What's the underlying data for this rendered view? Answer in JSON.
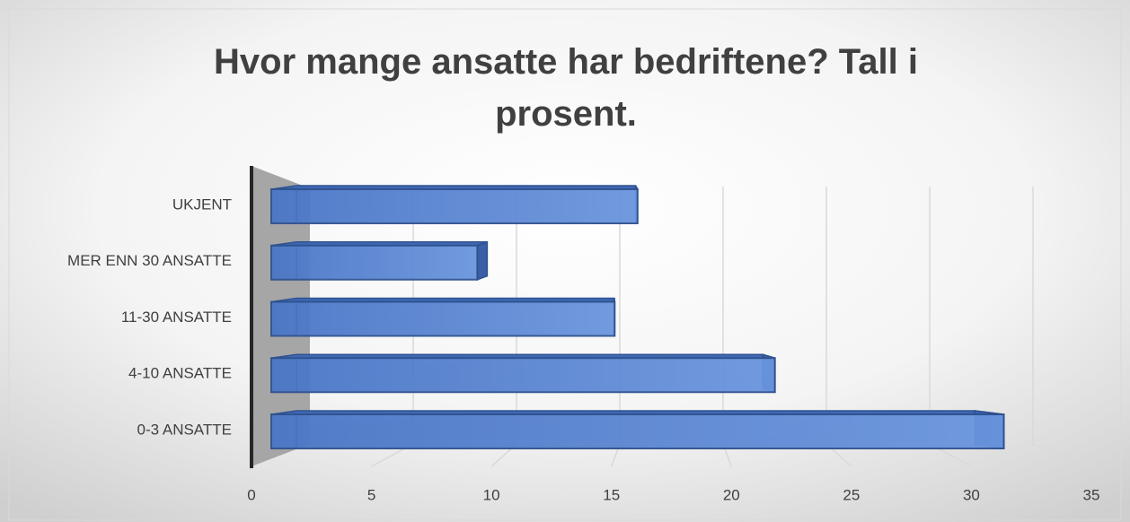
{
  "chart_data": {
    "type": "bar3d_horizontal",
    "title": "Hvor mange ansatte har bedriftene? Tall i prosent.",
    "categories": [
      "0-3 ANSATTE",
      "4-10 ANSATTE",
      "11-30 ANSATTE",
      "MER ENN 30 ANSATTE",
      "UKJENT"
    ],
    "values": [
      32,
      22,
      15,
      9,
      16
    ],
    "color": "#4472c4",
    "xlim": [
      0,
      35
    ],
    "xticks": [
      0,
      5,
      10,
      15,
      20,
      25,
      30,
      35
    ],
    "grid": true
  }
}
